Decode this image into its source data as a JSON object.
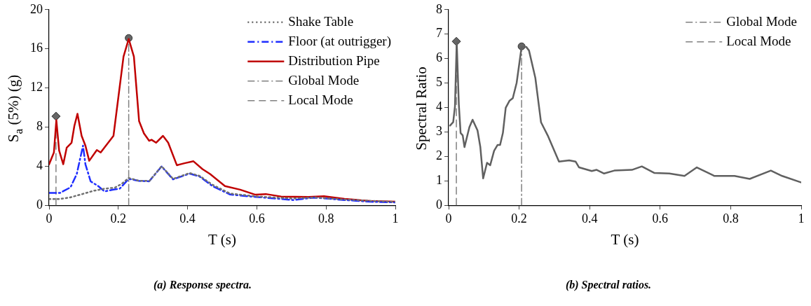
{
  "chart_data": [
    {
      "type": "line",
      "xlabel": "T (s)",
      "ylabel": "S$_{a}$ (5%) (g)",
      "annotations": [
        "(a) Response spectra."
      ],
      "xlim": [
        0,
        1
      ],
      "ylim": [
        0,
        20
      ],
      "xticks": [
        0,
        0.2,
        0.4,
        0.6,
        0.8,
        1
      ],
      "yticks": [
        0,
        4,
        8,
        12,
        16,
        20
      ],
      "grid": false,
      "legend": "top right",
      "marker": "none",
      "series": [
        {
          "name": "Shake Table",
          "color": "#707070",
          "line_style": "dotted",
          "x": [
            0,
            0.03,
            0.06,
            0.091,
            0.127,
            0.16,
            0.19,
            0.21,
            0.23,
            0.26,
            0.29,
            0.325,
            0.358,
            0.406,
            0.435,
            0.472,
            0.523,
            0.574,
            0.6,
            0.7,
            0.77,
            0.85,
            0.93,
            1
          ],
          "values": [
            0.64,
            0.64,
            0.8,
            1.1,
            1.47,
            1.7,
            1.8,
            2.2,
            2.8,
            2.5,
            2.5,
            4,
            2.7,
            3.3,
            3,
            2.1,
            1.2,
            1,
            0.9,
            0.7,
            0.8,
            0.6,
            0.45,
            0.35
          ]
        },
        {
          "name": "Floor (at outrigger)",
          "color": "#1f2eff",
          "line_style": "dashdot",
          "x": [
            0,
            0.032,
            0.062,
            0.08,
            0.098,
            0.105,
            0.12,
            0.142,
            0.16,
            0.186,
            0.204,
            0.23,
            0.259,
            0.289,
            0.325,
            0.358,
            0.406,
            0.435,
            0.472,
            0.523,
            0.574,
            0.596,
            0.706,
            0.765,
            0.853,
            0.926,
            1
          ],
          "values": [
            1.27,
            1.27,
            1.84,
            3.2,
            6.1,
            4.2,
            2.45,
            1.96,
            1.42,
            1.6,
            1.7,
            2.7,
            2.5,
            2.45,
            3.97,
            2.65,
            3.24,
            2.94,
            1.96,
            1.1,
            0.93,
            0.86,
            0.54,
            0.79,
            0.54,
            0.37,
            0.3
          ]
        },
        {
          "name": "Distribution Pipe",
          "color": "#c00000",
          "line_style": "solid",
          "x": [
            0,
            0.014,
            0.021,
            0.029,
            0.041,
            0.051,
            0.065,
            0.073,
            0.082,
            0.094,
            0.105,
            0.116,
            0.138,
            0.149,
            0.186,
            0.215,
            0.23,
            0.245,
            0.26,
            0.274,
            0.289,
            0.296,
            0.309,
            0.329,
            0.344,
            0.369,
            0.391,
            0.417,
            0.443,
            0.465,
            0.508,
            0.552,
            0.596,
            0.626,
            0.67,
            0.75,
            0.794,
            0.853,
            0.926,
            1
          ],
          "values": [
            4.19,
            5.4,
            8.7,
            5.6,
            4.2,
            5.9,
            6.4,
            8.1,
            9.36,
            7.1,
            6.1,
            4.55,
            5.65,
            5.4,
            7.1,
            15.2,
            17,
            15.2,
            8.6,
            7.35,
            6.6,
            6.7,
            6.4,
            7.1,
            6.4,
            4.1,
            4.3,
            4.5,
            3.7,
            3.2,
            1.96,
            1.6,
            1.08,
            1.15,
            0.9,
            0.86,
            0.93,
            0.66,
            0.44,
            0.37
          ]
        },
        {
          "type": "scatter",
          "color": "#666666",
          "marker": "diamond",
          "x": [
            0.02
          ],
          "values": [
            9.1
          ]
        },
        {
          "name": "Global Mode",
          "color": "#808080",
          "line_style": "dashdot",
          "x": [
            0.23,
            0.23
          ],
          "values": [
            0,
            17.1
          ]
        },
        {
          "name": "Local Mode",
          "color": "#808080",
          "line_style": "dashed",
          "x": [
            0.02,
            0.02
          ],
          "values": [
            0,
            9.1
          ]
        },
        {
          "type": "scatter",
          "color": "#666666",
          "marker": "circle",
          "x": [
            0.23
          ],
          "values": [
            17.1
          ]
        }
      ]
    },
    {
      "type": "line",
      "xlabel": "T (s)",
      "ylabel": "Spectral Ratio",
      "annotations": [
        "(b) Spectral ratios."
      ],
      "xlim": [
        0,
        1
      ],
      "ylim": [
        0,
        8
      ],
      "xticks": [
        0,
        0.2,
        0.4,
        0.6,
        0.8,
        1
      ],
      "yticks": [
        0,
        1,
        2,
        3,
        4,
        5,
        6,
        7,
        8
      ],
      "grid": false,
      "legend": "top right",
      "marker": "none",
      "series": [
        {
          "color": "#606060",
          "line_style": "solid",
          "x": [
            0.004,
            0.013,
            0.018,
            0.023,
            0.029,
            0.034,
            0.04,
            0.045,
            0.059,
            0.068,
            0.082,
            0.09,
            0.098,
            0.109,
            0.118,
            0.129,
            0.139,
            0.146,
            0.154,
            0.162,
            0.173,
            0.182,
            0.193,
            0.207,
            0.22,
            0.228,
            0.246,
            0.262,
            0.281,
            0.313,
            0.342,
            0.36,
            0.37,
            0.406,
            0.42,
            0.441,
            0.47,
            0.52,
            0.548,
            0.584,
            0.626,
            0.669,
            0.704,
            0.754,
            0.811,
            0.854,
            0.914,
            0.946,
            0.999
          ],
          "values": [
            3.26,
            3.4,
            4.04,
            6.68,
            4.13,
            2.96,
            2.86,
            2.38,
            3.2,
            3.5,
            3.06,
            2.38,
            1.1,
            1.74,
            1.64,
            2.23,
            2.47,
            2.47,
            2.96,
            3.99,
            4.28,
            4.38,
            5.01,
            6.48,
            6.48,
            6.33,
            5.21,
            3.4,
            2.86,
            1.79,
            1.84,
            1.79,
            1.55,
            1.4,
            1.45,
            1.3,
            1.42,
            1.45,
            1.59,
            1.32,
            1.3,
            1.2,
            1.55,
            1.2,
            1.2,
            1.08,
            1.42,
            1.2,
            0.94
          ]
        },
        {
          "type": "scatter",
          "color": "#666666",
          "marker": "diamond",
          "x": [
            0.022
          ],
          "values": [
            6.7
          ]
        },
        {
          "name": "Global Mode",
          "color": "#808080",
          "line_style": "dashdot",
          "x": [
            0.207,
            0.207
          ],
          "values": [
            0,
            6.5
          ]
        },
        {
          "name": "Local Mode",
          "color": "#808080",
          "line_style": "dashed",
          "x": [
            0.022,
            0.022
          ],
          "values": [
            0,
            6.7
          ]
        },
        {
          "type": "scatter",
          "color": "#666666",
          "marker": "circle",
          "x": [
            0.207
          ],
          "values": [
            6.5
          ]
        }
      ]
    }
  ]
}
